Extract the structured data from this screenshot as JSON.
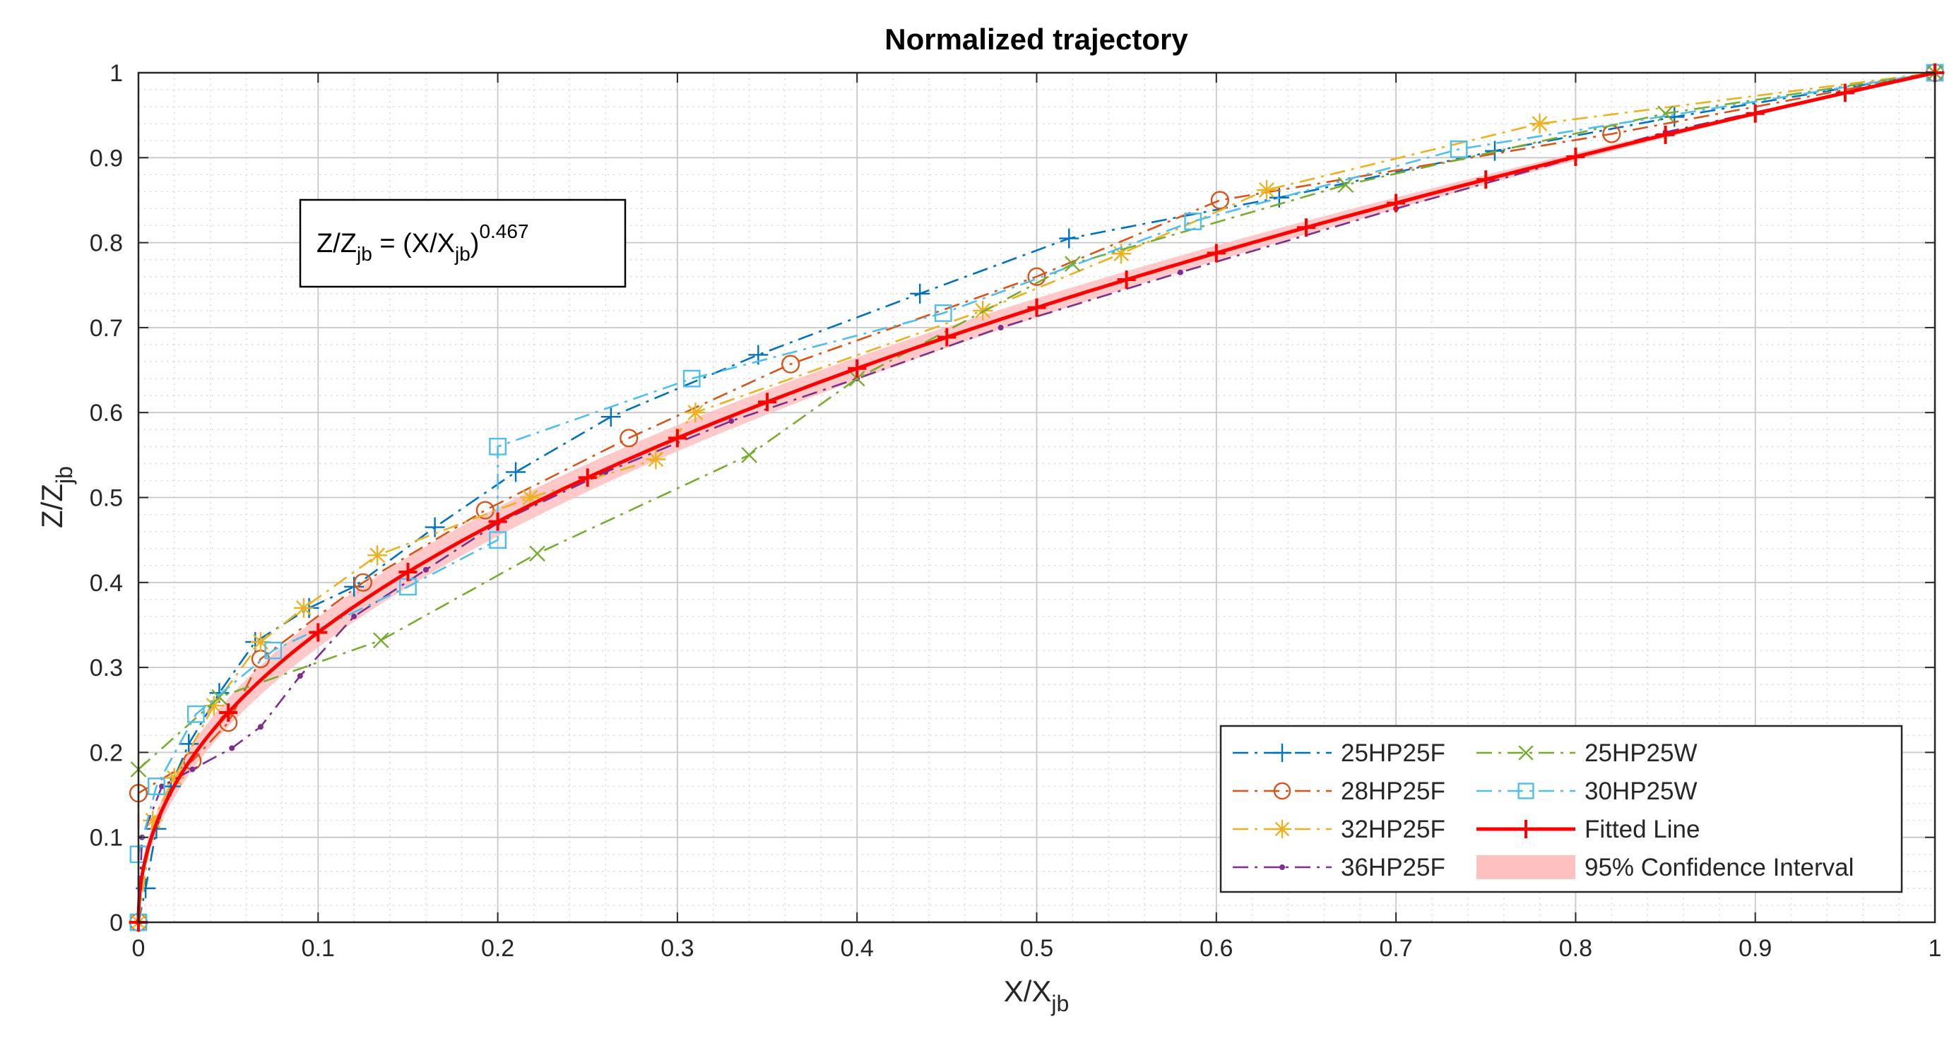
{
  "chart_data": {
    "type": "line",
    "title": "Normalized trajectory",
    "xlabel": {
      "base": "X/X",
      "sub": "jb"
    },
    "ylabel": {
      "base": "Z/Z",
      "sub": "jb"
    },
    "xlim": [
      0,
      1
    ],
    "ylim": [
      0,
      1
    ],
    "xticks": [
      "0",
      "0.1",
      "0.2",
      "0.3",
      "0.4",
      "0.5",
      "0.6",
      "0.7",
      "0.8",
      "0.9",
      "1"
    ],
    "yticks": [
      "0",
      "0.1",
      "0.2",
      "0.3",
      "0.4",
      "0.5",
      "0.6",
      "0.7",
      "0.8",
      "0.9",
      "1"
    ],
    "grid": true,
    "minor_grid": true,
    "legend_position": "bottom-right",
    "annotation": {
      "lhs_base": "Z/Z",
      "lhs_sub": "jb",
      "mid": " = (X/X",
      "rhs_sub": "jb",
      "close": ")",
      "exponent": "0.467"
    },
    "series": [
      {
        "name": "25HP25F",
        "color": "#0072BD",
        "marker": "plus",
        "style": "dashdot",
        "x": [
          0,
          0.004,
          0.01,
          0.018,
          0.028,
          0.045,
          0.065,
          0.095,
          0.12,
          0.165,
          0.21,
          0.263,
          0.345,
          0.435,
          0.518,
          0.635,
          0.755,
          0.855,
          1.0
        ],
        "y": [
          0,
          0.04,
          0.11,
          0.16,
          0.21,
          0.27,
          0.33,
          0.37,
          0.395,
          0.465,
          0.53,
          0.595,
          0.668,
          0.74,
          0.805,
          0.853,
          0.908,
          0.948,
          1.0
        ]
      },
      {
        "name": "28HP25F",
        "color": "#D95319",
        "marker": "circle",
        "style": "dashdot",
        "x": [
          0,
          0.0,
          0.03,
          0.05,
          0.068,
          0.125,
          0.193,
          0.273,
          0.363,
          0.5,
          0.602,
          0.82,
          1.0
        ],
        "y": [
          0,
          0.152,
          0.19,
          0.235,
          0.31,
          0.4,
          0.485,
          0.57,
          0.657,
          0.76,
          0.85,
          0.928,
          1.0
        ]
      },
      {
        "name": "32HP25F",
        "color": "#EDB120",
        "marker": "asterisk",
        "style": "dashdot",
        "x": [
          0,
          0.008,
          0.02,
          0.042,
          0.068,
          0.092,
          0.133,
          0.218,
          0.288,
          0.31,
          0.47,
          0.547,
          0.628,
          0.78,
          1.0
        ],
        "y": [
          0,
          0.12,
          0.17,
          0.255,
          0.33,
          0.37,
          0.432,
          0.5,
          0.545,
          0.6,
          0.72,
          0.787,
          0.862,
          0.94,
          1.0
        ]
      },
      {
        "name": "36HP25F",
        "color": "#7E2F8E",
        "marker": "point",
        "style": "dashdot",
        "x": [
          0,
          0.002,
          0.013,
          0.03,
          0.052,
          0.068,
          0.09,
          0.12,
          0.16,
          0.2,
          0.26,
          0.33,
          0.4,
          0.48,
          0.58,
          0.7,
          0.85,
          1.0
        ],
        "y": [
          0,
          0.1,
          0.16,
          0.18,
          0.205,
          0.23,
          0.29,
          0.36,
          0.415,
          0.47,
          0.53,
          0.59,
          0.64,
          0.7,
          0.765,
          0.84,
          0.93,
          1.0
        ]
      },
      {
        "name": "25HP25W",
        "color": "#77AC30",
        "marker": "x",
        "style": "dashdot",
        "x": [
          0,
          0.045,
          0.135,
          0.222,
          0.34,
          0.4,
          0.52,
          0.672,
          0.85,
          1.0
        ],
        "y": [
          0.18,
          0.265,
          0.332,
          0.434,
          0.55,
          0.64,
          0.775,
          0.868,
          0.952,
          1.0
        ]
      },
      {
        "name": "30HP25W",
        "color": "#4DBEEE",
        "marker": "square",
        "style": "dashdot",
        "x": [
          0,
          0.0,
          0.01,
          0.032,
          0.075,
          0.15,
          0.2,
          0.2,
          0.308,
          0.448,
          0.587,
          0.735,
          1.0
        ],
        "y": [
          0,
          0.08,
          0.16,
          0.245,
          0.32,
          0.395,
          0.45,
          0.56,
          0.64,
          0.717,
          0.825,
          0.91,
          1.0
        ]
      },
      {
        "name": "Fitted Line",
        "color": "#FF0000",
        "marker": "plus",
        "style": "solid",
        "exponent": 0.467
      },
      {
        "name": "95% Confidence Interval",
        "color": "#FFC0C0",
        "style": "band",
        "exponents": [
          0.445,
          0.49
        ]
      }
    ]
  }
}
